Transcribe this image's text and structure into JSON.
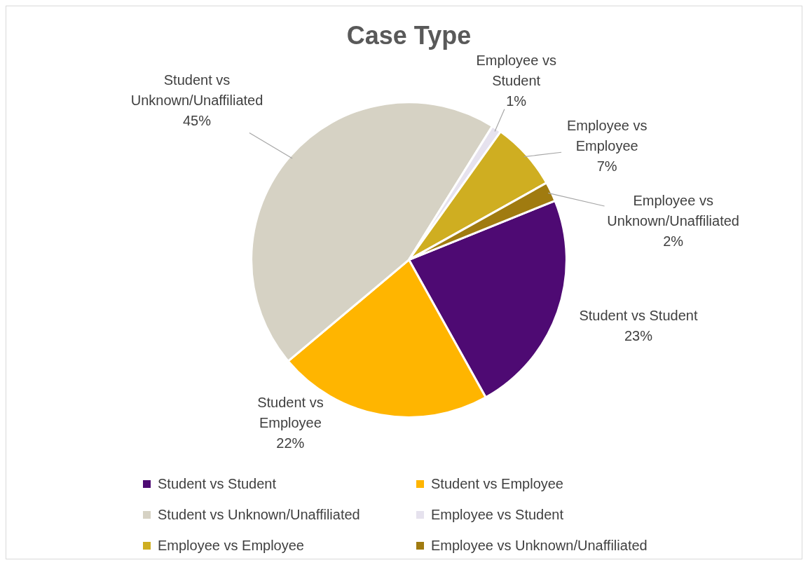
{
  "chart_data": {
    "type": "pie",
    "title": "Case Type",
    "categories": [
      "Student vs Student",
      "Student vs Employee",
      "Student vs Unknown/Unaffiliated",
      "Employee vs Student",
      "Employee vs Employee",
      "Employee vs Unknown/Unaffiliated"
    ],
    "values": [
      23,
      22,
      45,
      1,
      7,
      2
    ],
    "value_labels": [
      "23%",
      "22%",
      "45%",
      "1%",
      "7%",
      "2%"
    ],
    "colors": [
      "#4e0a73",
      "#ffb500",
      "#d6d2c4",
      "#e6e2ee",
      "#cfae21",
      "#a07b10"
    ],
    "legend": "bottom"
  }
}
